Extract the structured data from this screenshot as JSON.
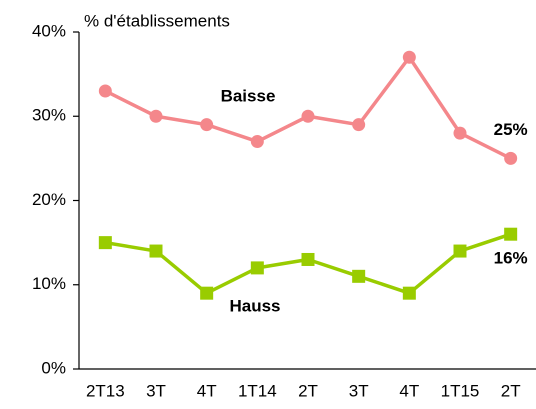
{
  "chart_data": {
    "type": "line",
    "ylabel": "% d'établissements",
    "categories": [
      "2T13",
      "3T",
      "4T",
      "1T14",
      "2T",
      "3T",
      "4T",
      "1T15",
      "2T"
    ],
    "series": [
      {
        "name": "Baisse",
        "color": "#f4878b",
        "marker": "circle",
        "values": [
          33,
          30,
          29,
          27,
          30,
          29,
          37,
          28,
          25
        ],
        "value_labels": [
          null,
          null,
          null,
          null,
          null,
          null,
          null,
          null,
          "25%"
        ]
      },
      {
        "name": "Hauss",
        "color": "#99cc00",
        "marker": "square",
        "values": [
          15,
          14,
          9,
          12,
          13,
          11,
          9,
          14,
          16
        ],
        "value_labels": [
          null,
          null,
          null,
          null,
          null,
          null,
          null,
          null,
          "16%"
        ]
      }
    ],
    "ylim": [
      0,
      40
    ],
    "yticks": [
      {
        "value": 0,
        "label": "0%"
      },
      {
        "value": 10,
        "label": "10%"
      },
      {
        "value": 20,
        "label": "20%"
      },
      {
        "value": 30,
        "label": "30%"
      },
      {
        "value": 40,
        "label": "40%"
      }
    ],
    "grid": false
  }
}
